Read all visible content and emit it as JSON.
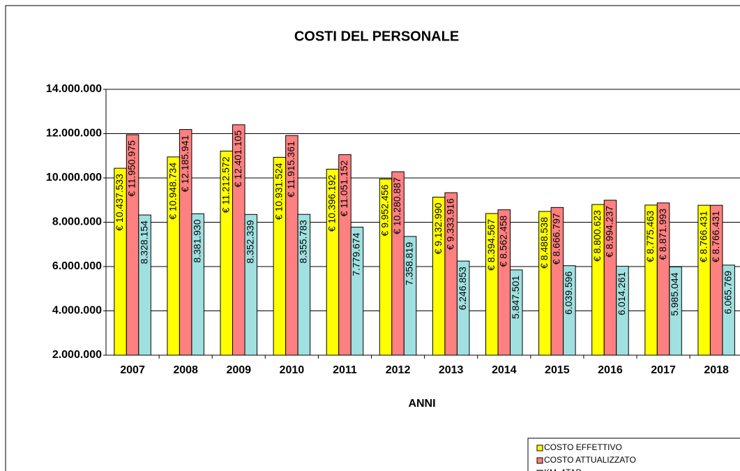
{
  "chart_data": {
    "type": "bar",
    "title": "COSTI DEL PERSONALE",
    "x_label": "ANNI",
    "categories": [
      "2007",
      "2008",
      "2009",
      "2010",
      "2011",
      "2012",
      "2013",
      "2014",
      "2015",
      "2016",
      "2017",
      "2018"
    ],
    "series": [
      {
        "name": "COSTO EFFETTIVO",
        "color": "#ffff00",
        "values": [
          10437533,
          10948734,
          11212572,
          10931524,
          10396192,
          9952456,
          9132990,
          8394567,
          8488538,
          8800623,
          8775463,
          8766431
        ],
        "value_labels": [
          "€ 10.437.533",
          "€ 10.948.734",
          "€ 11.212.572",
          "€ 10.931.524",
          "€ 10.396.192",
          "€ 9.952.456",
          "€ 9.132.990",
          "€ 8.394.567",
          "€ 8.488.538",
          "€ 8.800.623",
          "€ 8.775.463",
          "€ 8.766.431"
        ]
      },
      {
        "name": "COSTO ATTUALIZZATO",
        "color": "#ff8080",
        "values": [
          11950975,
          12185941,
          12401105,
          11915361,
          11051152,
          10280887,
          9333916,
          8562458,
          8666797,
          8994237,
          8871993,
          8766431
        ],
        "value_labels": [
          "€ 11.950.975",
          "€ 12.185.941",
          "€ 12.401.105",
          "€ 11.915.361",
          "€ 11.051.152",
          "€ 10.280.887",
          "€ 9.333.916",
          "€ 8.562.458",
          "€ 8.666.797",
          "€ 8.994.237",
          "€ 8.871.993",
          "€ 8.766.431"
        ]
      },
      {
        "name": "KM. ATAP",
        "color": "#a0e0e0",
        "values": [
          8328154,
          8381930,
          8352339,
          8355783,
          7779674,
          7358819,
          6246853,
          5847501,
          6039596,
          6014261,
          5985044,
          6065769
        ],
        "value_labels": [
          "8.328.154",
          "8.381.930",
          "8.352.339",
          "8.355.783",
          "7.779.674",
          "7.358.819",
          "6.246.853",
          "5.847.501",
          "6.039.596",
          "6.014.261",
          "5.985.044",
          "6.065.769"
        ]
      }
    ],
    "ylim": [
      2000000,
      14000000
    ],
    "yticks": [
      {
        "value": 2000000,
        "label": "2.000.000"
      },
      {
        "value": 4000000,
        "label": "4.000.000"
      },
      {
        "value": 6000000,
        "label": "6.000.000"
      },
      {
        "value": 8000000,
        "label": "8.000.000"
      },
      {
        "value": 10000000,
        "label": "10.000.000"
      },
      {
        "value": 12000000,
        "label": "12.000.000"
      },
      {
        "value": 14000000,
        "label": "14.000.000"
      }
    ],
    "grid": true
  }
}
